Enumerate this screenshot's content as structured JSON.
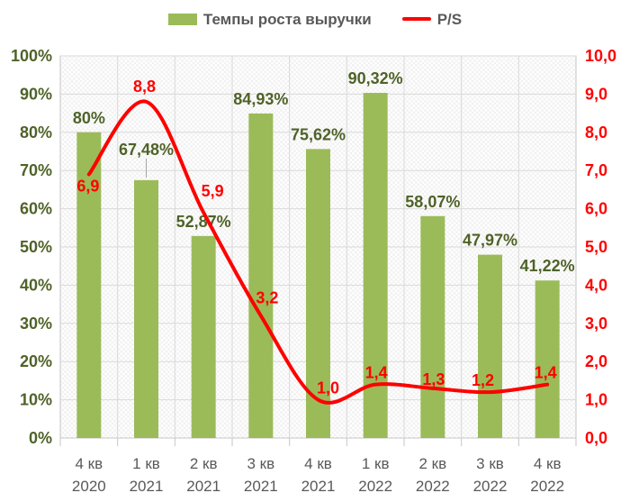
{
  "legend": {
    "bar_label": "Темпы роста выручки",
    "line_label": "P/S"
  },
  "chart_data": {
    "type": "combo",
    "subtype": [
      "bar",
      "line"
    ],
    "categories": [
      [
        "4 кв",
        "2020"
      ],
      [
        "1 кв",
        "2021"
      ],
      [
        "2 кв",
        "2021"
      ],
      [
        "3 кв",
        "2021"
      ],
      [
        "4 кв",
        "2021"
      ],
      [
        "1 кв",
        "2022"
      ],
      [
        "2 кв",
        "2022"
      ],
      [
        "3 кв",
        "2022"
      ],
      [
        "4 кв",
        "2022"
      ]
    ],
    "series": [
      {
        "name": "Темпы роста выручки",
        "type": "bar",
        "axis": "left",
        "color": "#9BBB59",
        "values": [
          80,
          67.48,
          52.87,
          84.93,
          75.62,
          90.32,
          58.07,
          47.97,
          41.22
        ],
        "labels": [
          "80%",
          "67,48%",
          "52,87%",
          "84,93%",
          "75,62%",
          "90,32%",
          "58,07%",
          "47,97%",
          "41,22%"
        ]
      },
      {
        "name": "P/S",
        "type": "line",
        "axis": "right",
        "color": "#FF0000",
        "smooth": true,
        "values": [
          6.9,
          8.8,
          5.9,
          3.2,
          1.0,
          1.4,
          1.3,
          1.2,
          1.4
        ],
        "labels": [
          "6,9",
          "8,8",
          "5,9",
          "3,2",
          "1,0",
          "1,4",
          "1,3",
          "1,2",
          "1,4"
        ]
      }
    ],
    "left_axis": {
      "min": 0,
      "max": 100,
      "step": 10,
      "ticks": [
        "0%",
        "10%",
        "20%",
        "30%",
        "40%",
        "50%",
        "60%",
        "70%",
        "80%",
        "90%",
        "100%"
      ],
      "color": "#4F6228"
    },
    "right_axis": {
      "min": 0,
      "max": 10,
      "step": 1,
      "ticks": [
        "0,0",
        "1,0",
        "2,0",
        "3,0",
        "4,0",
        "5,0",
        "6,0",
        "7,0",
        "8,0",
        "9,0",
        "10,0"
      ],
      "color": "#FF0000"
    },
    "grid": true,
    "legend_position": "top",
    "title": ""
  },
  "colors": {
    "bar_fill": "#9BBB59",
    "line_stroke": "#FF0000",
    "bar_label_text": "#4F6228",
    "line_label_text": "#FF0000",
    "x_label_text": "#595959",
    "legend_text": "#595959",
    "gridline": "#D9D9D9",
    "plot_border": "#C6C6C6",
    "leader_line": "#A6A6A6",
    "plot_hatch": "#ECECEC"
  }
}
